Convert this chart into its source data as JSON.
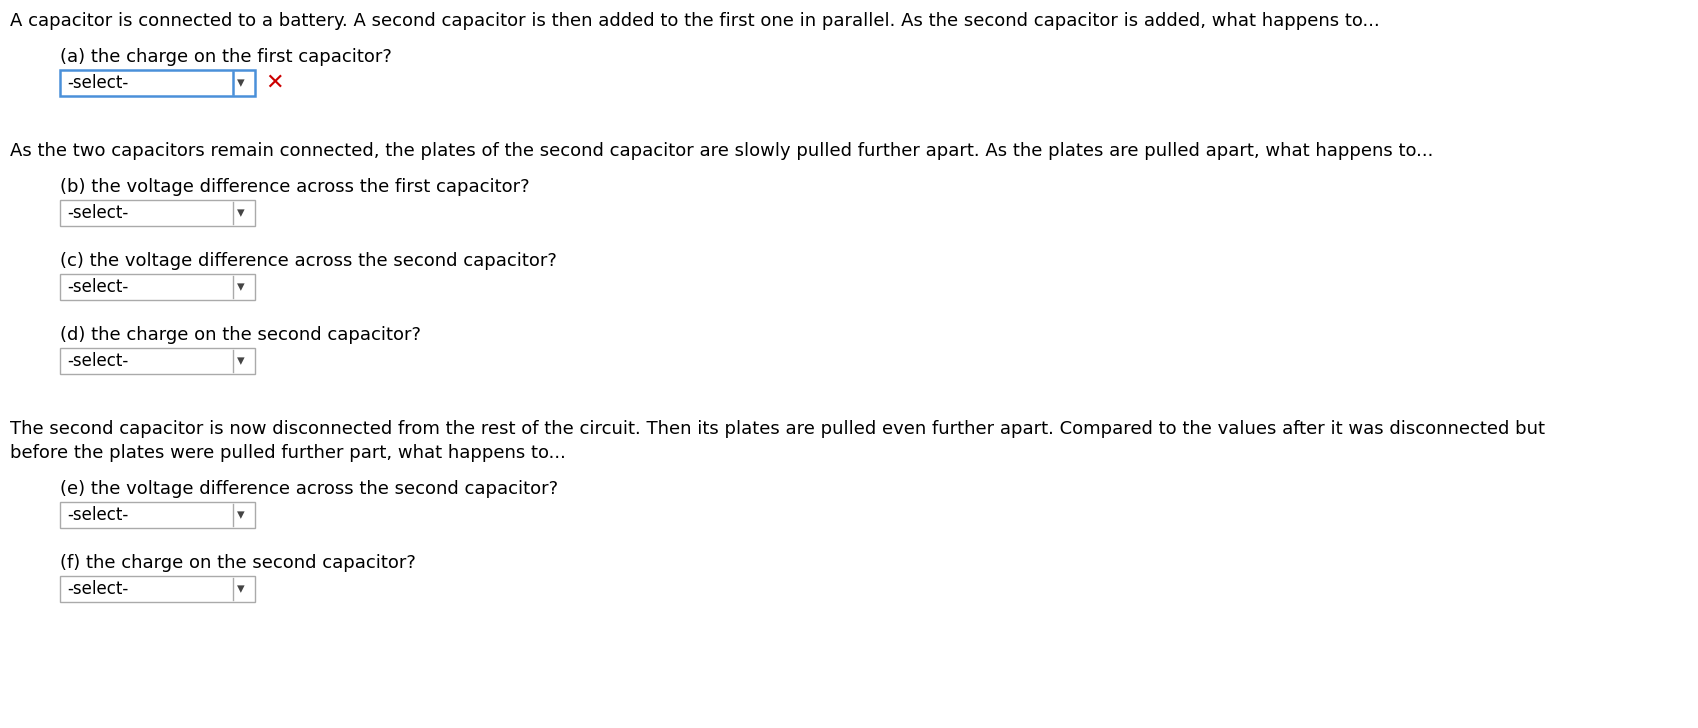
{
  "bg_color": "#ffffff",
  "text_color": "#000000",
  "red_color": "#cc0000",
  "dropdown_border": "#aaaaaa",
  "dropdown_bg": "#ffffff",
  "dropdown_highlight": "#4a90d9",
  "paragraph1": "A capacitor is connected to a battery. A second capacitor is then added to the first one in parallel. As the second capacitor is added, what happens to...",
  "q_a_label": "(a) the charge on the first capacitor?",
  "paragraph2": "As the two capacitors remain connected, the plates of the second capacitor are slowly pulled further apart. As the plates are pulled apart, what happens to...",
  "q_b_label": "(b) the voltage difference across the first capacitor?",
  "q_c_label": "(c) the voltage difference across the second capacitor?",
  "q_d_label": "(d) the charge on the second capacitor?",
  "paragraph3_line1": "The second capacitor is now disconnected from the rest of the circuit. Then its plates are pulled even further apart. Compared to the values after it was disconnected but",
  "paragraph3_line2": "before the plates were pulled further part, what happens to...",
  "q_e_label": "(e) the voltage difference across the second capacitor?",
  "q_f_label": "(f) the charge on the second capacitor?",
  "dropdown_text": "-select-",
  "font_size_main": 13,
  "font_size_question": 13,
  "font_size_dropdown": 12,
  "font_size_x": 16
}
